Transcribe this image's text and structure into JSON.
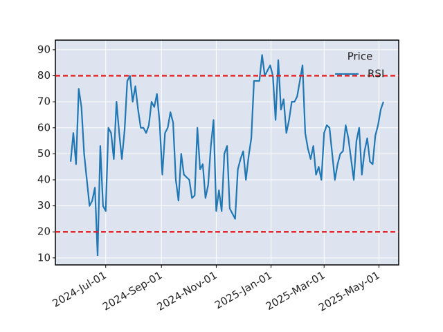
{
  "chart_data": {
    "type": "line",
    "x": [
      "2024-05-23",
      "2024-05-26",
      "2024-05-29",
      "2024-06-01",
      "2024-06-04",
      "2024-06-07",
      "2024-06-10",
      "2024-06-13",
      "2024-06-16",
      "2024-06-19",
      "2024-06-22",
      "2024-06-25",
      "2024-06-28",
      "2024-07-01",
      "2024-07-04",
      "2024-07-07",
      "2024-07-10",
      "2024-07-13",
      "2024-07-16",
      "2024-07-19",
      "2024-07-22",
      "2024-07-25",
      "2024-07-28",
      "2024-07-31",
      "2024-08-03",
      "2024-08-06",
      "2024-08-09",
      "2024-08-12",
      "2024-08-15",
      "2024-08-18",
      "2024-08-21",
      "2024-08-24",
      "2024-08-27",
      "2024-08-30",
      "2024-09-02",
      "2024-09-05",
      "2024-09-08",
      "2024-09-11",
      "2024-09-14",
      "2024-09-17",
      "2024-09-20",
      "2024-09-23",
      "2024-09-26",
      "2024-09-29",
      "2024-10-02",
      "2024-10-05",
      "2024-10-08",
      "2024-10-11",
      "2024-10-14",
      "2024-10-17",
      "2024-10-20",
      "2024-10-23",
      "2024-10-26",
      "2024-10-29",
      "2024-11-01",
      "2024-11-04",
      "2024-11-07",
      "2024-11-10",
      "2024-11-13",
      "2024-11-16",
      "2024-11-19",
      "2024-11-22",
      "2024-11-25",
      "2024-11-28",
      "2024-12-01",
      "2024-12-04",
      "2024-12-07",
      "2024-12-10",
      "2024-12-13",
      "2024-12-16",
      "2024-12-19",
      "2024-12-22",
      "2024-12-25",
      "2024-12-28",
      "2024-12-31",
      "2025-01-03",
      "2025-01-06",
      "2025-01-09",
      "2025-01-12",
      "2025-01-15",
      "2025-01-18",
      "2025-01-21",
      "2025-01-24",
      "2025-01-27",
      "2025-01-30",
      "2025-02-02",
      "2025-02-05",
      "2025-02-08",
      "2025-02-11",
      "2025-02-14",
      "2025-02-17",
      "2025-02-20",
      "2025-02-23",
      "2025-02-26",
      "2025-03-01",
      "2025-03-04",
      "2025-03-07",
      "2025-03-10",
      "2025-03-13",
      "2025-03-16",
      "2025-03-19",
      "2025-03-22",
      "2025-03-25",
      "2025-03-28",
      "2025-03-31",
      "2025-04-03",
      "2025-04-06",
      "2025-04-09",
      "2025-04-12",
      "2025-04-15",
      "2025-04-18",
      "2025-04-21",
      "2025-04-24",
      "2025-04-27",
      "2025-04-30",
      "2025-05-03",
      "2025-05-06"
    ],
    "series": [
      {
        "name": "RSI",
        "color": "#1f77b4",
        "values": [
          47,
          58,
          46,
          75,
          68,
          50,
          40,
          30,
          32,
          37,
          11,
          53,
          30,
          28,
          60,
          58,
          48,
          70,
          58,
          48,
          59,
          78,
          80,
          70,
          76,
          67,
          60,
          60,
          58,
          61,
          70,
          68,
          73,
          62,
          42,
          58,
          60,
          66,
          62,
          40,
          32,
          50,
          42,
          41,
          40,
          33,
          34,
          60,
          44,
          46,
          33,
          38,
          53,
          63,
          28,
          36,
          28,
          50,
          53,
          29,
          27,
          25,
          44,
          48,
          51,
          40,
          49,
          56,
          78,
          78,
          78,
          88,
          80,
          82,
          84,
          80,
          63,
          86,
          67,
          71,
          58,
          63,
          70,
          70,
          72,
          78,
          84,
          58,
          52,
          48,
          53,
          42,
          45,
          40,
          58,
          61,
          60,
          50,
          40,
          46,
          50,
          51,
          61,
          56,
          48,
          40,
          55,
          60,
          42,
          51,
          56,
          47,
          46,
          57,
          61,
          67,
          70
        ]
      }
    ],
    "legend_title": "Price",
    "legend": "upper right",
    "hlines": [
      80,
      20
    ],
    "hline_color": "#e31a1c",
    "xlim": [
      "2024-05-06",
      "2025-05-23"
    ],
    "xticks": [
      {
        "value": "2024-07-01",
        "label": "2024-Jul-01"
      },
      {
        "value": "2024-09-01",
        "label": "2024-Sep-01"
      },
      {
        "value": "2024-11-01",
        "label": "2024-Nov-01"
      },
      {
        "value": "2025-01-01",
        "label": "2025-Jan-01"
      },
      {
        "value": "2025-03-01",
        "label": "2025-Mar-01"
      },
      {
        "value": "2025-05-01",
        "label": "2025-May-01"
      }
    ],
    "ylim": [
      7.3,
      93.7
    ],
    "yticks": [
      10,
      20,
      30,
      40,
      50,
      60,
      70,
      80,
      90
    ],
    "grid": true
  }
}
